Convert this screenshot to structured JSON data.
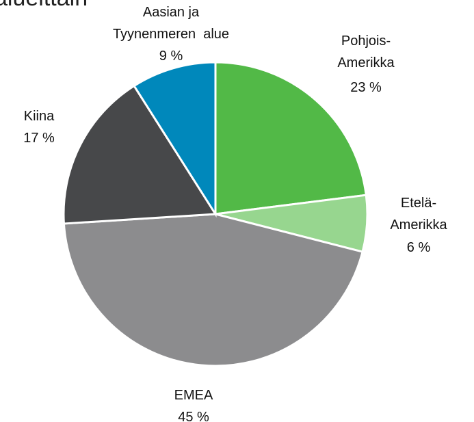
{
  "chart_data": {
    "type": "pie",
    "title": "alueittain",
    "categories": [
      "Pohjois-\nAmerikka",
      "Etelä-\nAmerikka",
      "EMEA",
      "Kiina",
      "Aasian ja\nTyynenmeren  alue"
    ],
    "values": [
      23,
      6,
      45,
      17,
      9
    ],
    "value_labels": [
      "23 %",
      "6 %",
      "45 %",
      "17 %",
      "9 %"
    ],
    "colors": [
      "#52b947",
      "#97d68f",
      "#8c8c8e",
      "#47484a",
      "#0088bb"
    ]
  }
}
